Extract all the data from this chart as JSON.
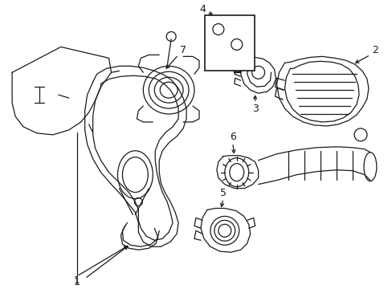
{
  "background_color": "#ffffff",
  "line_color": "#1a1a1a",
  "line_width": 0.8,
  "fig_width": 4.89,
  "fig_height": 3.6,
  "dpi": 100,
  "border_color": "#cccccc"
}
